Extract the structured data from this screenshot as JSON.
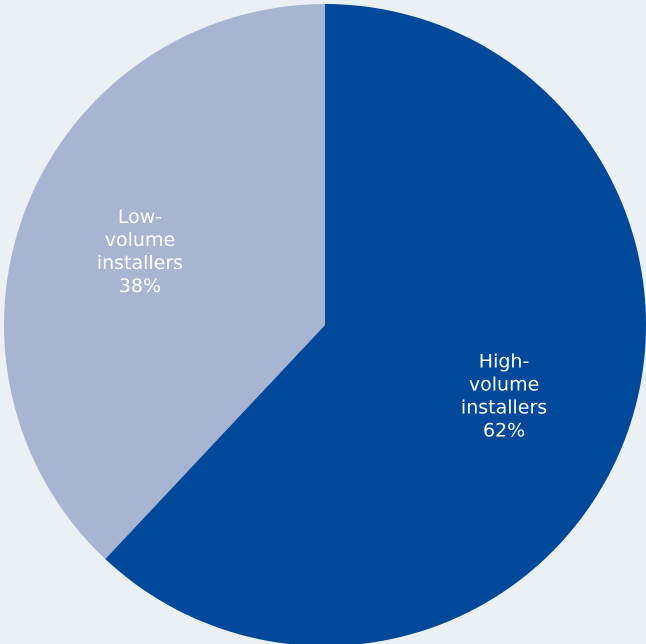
{
  "chart_data": {
    "type": "pie",
    "title": "",
    "slices": [
      {
        "label_lines": [
          "High-",
          "volume",
          "installers",
          "62%"
        ],
        "name": "High-volume installers",
        "value": 62,
        "color": "#00489a"
      },
      {
        "label_lines": [
          "Low-",
          "volume",
          "installers",
          "38%"
        ],
        "name": "Low-volume installers",
        "value": 38,
        "color": "#a7b5d3"
      }
    ],
    "start_angle_deg": 0,
    "direction": "clockwise",
    "legend": "none",
    "background": "#ebf0f5"
  }
}
